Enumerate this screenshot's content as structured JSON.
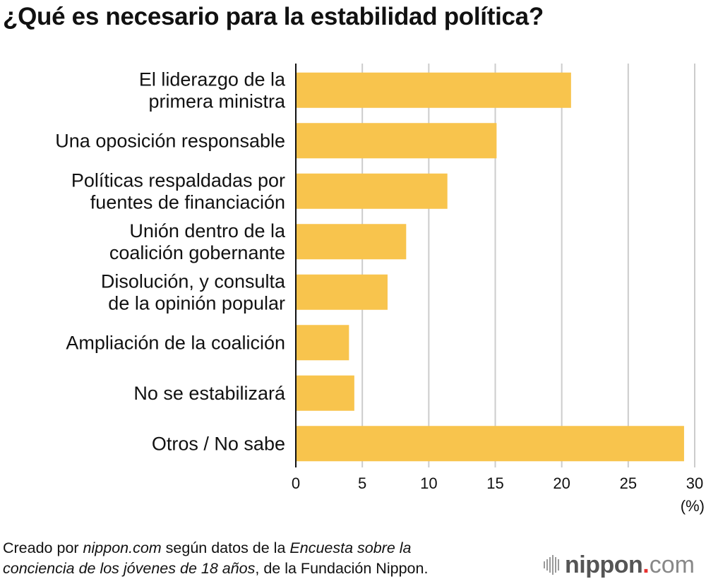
{
  "chart_data": {
    "type": "bar",
    "orientation": "horizontal",
    "title": "¿Qué es necesario para la estabilidad política?",
    "categories": [
      [
        "El liderazgo de la",
        "primera ministra"
      ],
      [
        "Una oposición responsable"
      ],
      [
        "Políticas respaldadas por",
        "fuentes de financiación"
      ],
      [
        "Unión dentro de la",
        "coalición gobernante"
      ],
      [
        "Disolución, y consulta",
        "de la opinión popular"
      ],
      [
        "Ampliación de la coalición"
      ],
      [
        "No se estabilizará"
      ],
      [
        "Otros / No sabe"
      ]
    ],
    "values": [
      20.7,
      15.1,
      11.4,
      8.3,
      6.9,
      4.0,
      4.4,
      29.2
    ],
    "xlabel": "(%)",
    "ylabel": "",
    "xlim": [
      0,
      30
    ],
    "xticks": [
      0,
      5,
      10,
      15,
      20,
      25,
      30
    ],
    "grid": true,
    "bar_color": "#f8c44d",
    "grid_color": "#cccccc",
    "axis_color": "#111111"
  },
  "source": {
    "prefix": "Creado por ",
    "site": "nippon.com",
    "middle": " según datos de la ",
    "survey_line1": "Encuesta sobre la",
    "survey_line2": "conciencia de los jóvenes de 18 años",
    "suffix": ", de la Fundación Nippon."
  },
  "logo": {
    "name": "nippon",
    "dot": ".",
    "tld": "com",
    "accent_color": "#e8312f"
  }
}
